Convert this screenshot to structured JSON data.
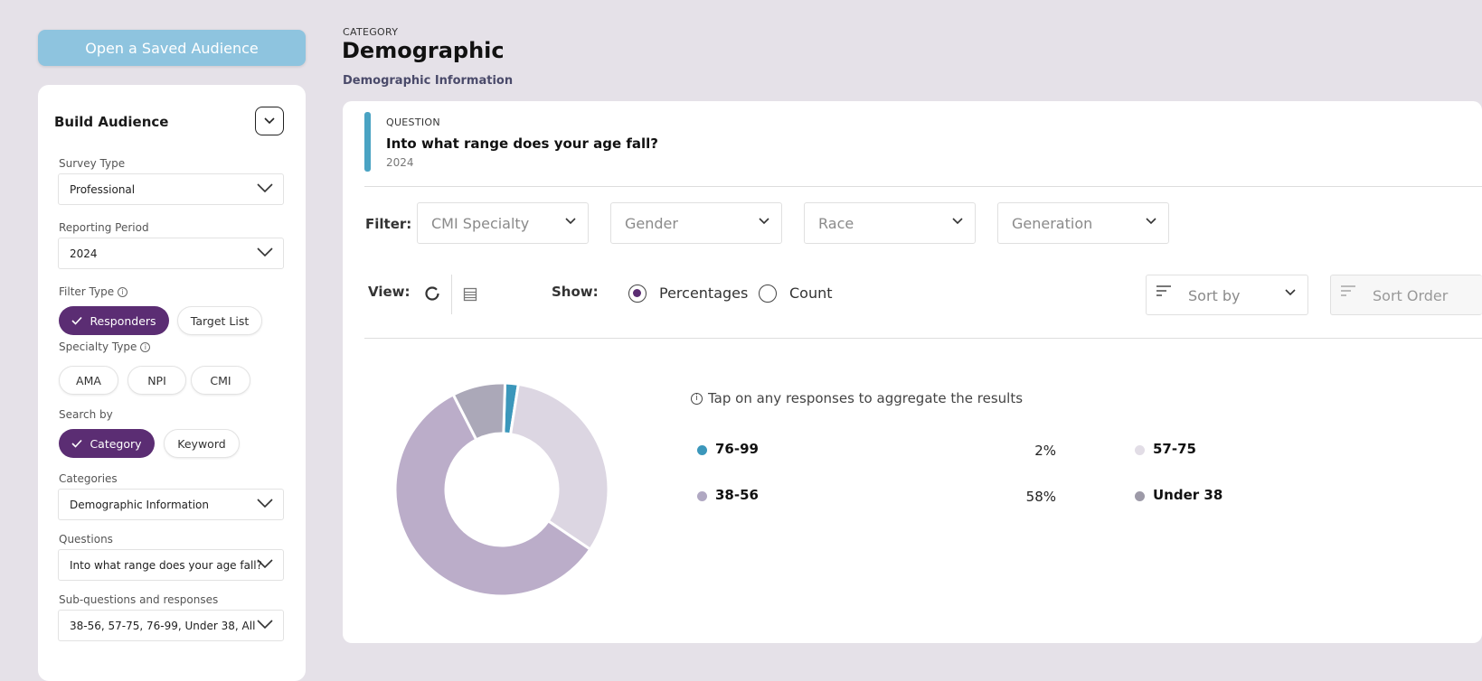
{
  "sidebar": {
    "open_saved": "Open a Saved Audience",
    "title": "Build Audience",
    "survey_type": {
      "label": "Survey Type",
      "value": "Professional"
    },
    "reporting_period": {
      "label": "Reporting Period",
      "value": "2024"
    },
    "filter_type": {
      "label": "Filter Type",
      "options": [
        "Responders",
        "Target List"
      ],
      "selected": "Responders"
    },
    "specialty_type": {
      "label": "Specialty Type",
      "options": [
        "AMA",
        "NPI",
        "CMI"
      ]
    },
    "search_by": {
      "label": "Search by",
      "options": [
        "Category",
        "Keyword"
      ],
      "selected": "Category"
    },
    "categories": {
      "label": "Categories",
      "value": "Demographic Information"
    },
    "questions": {
      "label": "Questions",
      "value": "Into what range does your age fall?"
    },
    "subquestions": {
      "label": "Sub-questions and responses",
      "value": "38-56, 57-75, 76-99, Under 38, All"
    }
  },
  "main": {
    "category_label": "CATEGORY",
    "category_title": "Demographic",
    "category_sub": "Demographic Information",
    "question_label": "QUESTION",
    "question_text": "Into what range does your age fall?",
    "question_year": "2024",
    "filter_label": "Filter:",
    "filters": [
      "CMI Specialty",
      "Gender",
      "Race",
      "Generation"
    ],
    "view_label": "View:",
    "show_label": "Show:",
    "show_options": [
      "Percentages",
      "Count"
    ],
    "show_selected": "Percentages",
    "sort_by": "Sort by",
    "sort_order": "Sort Order",
    "hint": "Tap on any responses to aggregate the results"
  },
  "colors": {
    "accent": "#5b2d73",
    "question_bar": "#4aa3c3",
    "open_button": "#8ec4df"
  },
  "chart_data": {
    "type": "pie",
    "donut": true,
    "categories": [
      "76-99",
      "57-75",
      "38-56",
      "Under 38"
    ],
    "values": [
      2,
      32,
      58,
      8
    ],
    "colors": [
      "#3b97bb",
      "#dcd6e2",
      "#bbadc9",
      "#aba8b8"
    ],
    "legend": [
      {
        "label": "76-99",
        "pct": "2%"
      },
      {
        "label": "57-75",
        "pct": ""
      },
      {
        "label": "38-56",
        "pct": "58%"
      },
      {
        "label": "Under 38",
        "pct": ""
      }
    ]
  }
}
